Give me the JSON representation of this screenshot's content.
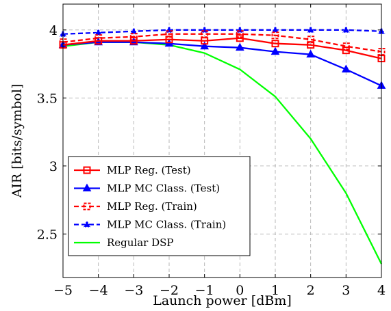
{
  "chart_data": {
    "type": "line",
    "xlabel": "Launch power [dBm]",
    "ylabel": "AIR [bits/symbol]",
    "xlim": [
      -5,
      4
    ],
    "ylim": [
      2.18,
      4.19
    ],
    "x_ticks": [
      -5,
      -4,
      -3,
      -2,
      -1,
      0,
      1,
      2,
      3,
      4
    ],
    "x_tick_labels": [
      "−5",
      "−4",
      "−3",
      "−2",
      "−1",
      "0",
      "1",
      "2",
      "3",
      "4"
    ],
    "y_ticks": [
      2.5,
      3,
      3.5,
      4
    ],
    "y_tick_labels": [
      "2.5",
      "3",
      "3.5",
      "4"
    ],
    "grid": true,
    "legend_position": "bottom-left",
    "x": [
      -5,
      -4,
      -3,
      -2,
      -1,
      0,
      1,
      2,
      3,
      4
    ],
    "series": [
      {
        "name": "MLP Reg. (Test)",
        "color": "#ff0000",
        "line_style": "solid",
        "marker": "square",
        "values": [
          3.89,
          3.92,
          3.92,
          3.93,
          3.92,
          3.94,
          3.9,
          3.89,
          3.85,
          3.79
        ]
      },
      {
        "name": "MLP MC Class. (Test)",
        "color": "#0000ff",
        "line_style": "solid",
        "marker": "triangle",
        "values": [
          3.89,
          3.91,
          3.91,
          3.9,
          3.88,
          3.87,
          3.84,
          3.82,
          3.71,
          3.59
        ]
      },
      {
        "name": "MLP Reg. (Train)",
        "color": "#ff0000",
        "line_style": "dashed",
        "marker": "square",
        "values": [
          3.91,
          3.94,
          3.95,
          3.97,
          3.97,
          3.97,
          3.96,
          3.93,
          3.88,
          3.84
        ]
      },
      {
        "name": "MLP MC Class. (Train)",
        "color": "#0000ff",
        "line_style": "dashed",
        "marker": "triangle",
        "values": [
          3.97,
          3.98,
          3.99,
          4.0,
          4.0,
          4.0,
          4.0,
          4.0,
          4.0,
          3.99
        ]
      },
      {
        "name": "Regular DSP",
        "color": "#00ff00",
        "line_style": "solid",
        "marker": "none",
        "values": [
          3.88,
          3.91,
          3.91,
          3.89,
          3.83,
          3.71,
          3.51,
          3.2,
          2.8,
          2.28
        ]
      }
    ]
  }
}
